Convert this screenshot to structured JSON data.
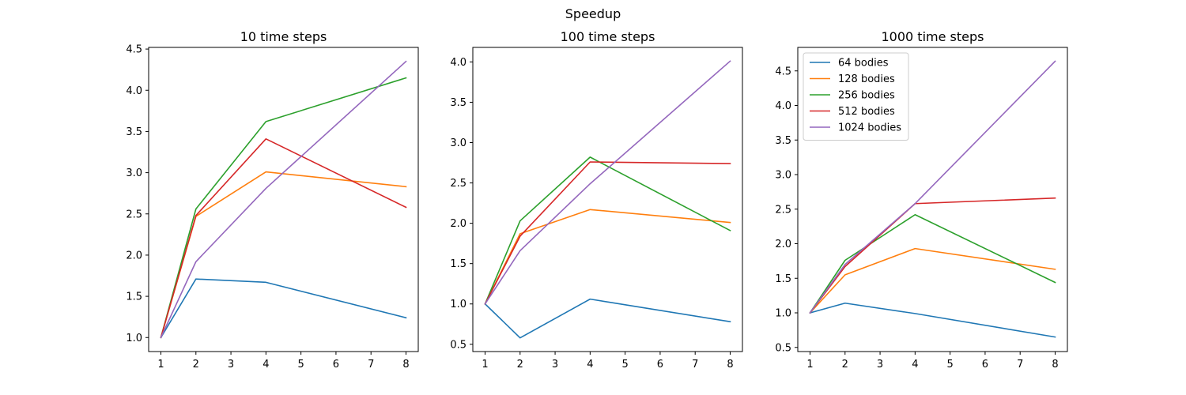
{
  "figure": {
    "suptitle": "Speedup"
  },
  "chart_data": [
    {
      "type": "line",
      "title": "10 time steps",
      "xlabel": "",
      "ylabel": "",
      "x": [
        1,
        2,
        4,
        8
      ],
      "xlim": [
        0.65,
        8.35
      ],
      "ylim": [
        0.83,
        4.52
      ],
      "xticks": [
        1,
        2,
        3,
        4,
        5,
        6,
        7,
        8
      ],
      "yticks": [
        1.0,
        1.5,
        2.0,
        2.5,
        3.0,
        3.5,
        4.0,
        4.5
      ],
      "legend": false,
      "series": [
        {
          "name": "64 bodies",
          "color": "#1f77b4",
          "values": [
            1.0,
            1.71,
            1.67,
            1.24
          ]
        },
        {
          "name": "128 bodies",
          "color": "#ff7f0e",
          "values": [
            1.0,
            2.47,
            3.01,
            2.83
          ]
        },
        {
          "name": "256 bodies",
          "color": "#2ca02c",
          "values": [
            1.0,
            2.56,
            3.62,
            4.15
          ]
        },
        {
          "name": "512 bodies",
          "color": "#d62728",
          "values": [
            1.0,
            2.48,
            3.41,
            2.58
          ]
        },
        {
          "name": "1024 bodies",
          "color": "#9467bd",
          "values": [
            1.0,
            1.92,
            2.81,
            4.35
          ]
        }
      ]
    },
    {
      "type": "line",
      "title": "100 time steps",
      "xlabel": "",
      "ylabel": "",
      "x": [
        1,
        2,
        4,
        8
      ],
      "xlim": [
        0.65,
        8.35
      ],
      "ylim": [
        0.41,
        4.18
      ],
      "xticks": [
        1,
        2,
        3,
        4,
        5,
        6,
        7,
        8
      ],
      "yticks": [
        0.5,
        1.0,
        1.5,
        2.0,
        2.5,
        3.0,
        3.5,
        4.0
      ],
      "legend": false,
      "series": [
        {
          "name": "64 bodies",
          "color": "#1f77b4",
          "values": [
            1.0,
            0.58,
            1.06,
            0.78
          ]
        },
        {
          "name": "128 bodies",
          "color": "#ff7f0e",
          "values": [
            1.0,
            1.87,
            2.17,
            2.01
          ]
        },
        {
          "name": "256 bodies",
          "color": "#2ca02c",
          "values": [
            1.0,
            2.03,
            2.82,
            1.91
          ]
        },
        {
          "name": "512 bodies",
          "color": "#d62728",
          "values": [
            1.0,
            1.84,
            2.76,
            2.74
          ]
        },
        {
          "name": "1024 bodies",
          "color": "#9467bd",
          "values": [
            1.0,
            1.66,
            2.49,
            4.01
          ]
        }
      ]
    },
    {
      "type": "line",
      "title": "1000 time steps",
      "xlabel": "",
      "ylabel": "",
      "x": [
        1,
        2,
        4,
        8
      ],
      "xlim": [
        0.65,
        8.35
      ],
      "ylim": [
        0.44,
        4.84
      ],
      "xticks": [
        1,
        2,
        3,
        4,
        5,
        6,
        7,
        8
      ],
      "yticks": [
        0.5,
        1.0,
        1.5,
        2.0,
        2.5,
        3.0,
        3.5,
        4.0,
        4.5
      ],
      "legend": true,
      "legend_position": "upper-left",
      "series": [
        {
          "name": "64 bodies",
          "color": "#1f77b4",
          "values": [
            1.0,
            1.14,
            0.99,
            0.65
          ]
        },
        {
          "name": "128 bodies",
          "color": "#ff7f0e",
          "values": [
            1.0,
            1.55,
            1.93,
            1.63
          ]
        },
        {
          "name": "256 bodies",
          "color": "#2ca02c",
          "values": [
            1.0,
            1.76,
            2.42,
            1.44
          ]
        },
        {
          "name": "512 bodies",
          "color": "#d62728",
          "values": [
            1.0,
            1.67,
            2.58,
            2.66
          ]
        },
        {
          "name": "1024 bodies",
          "color": "#9467bd",
          "values": [
            1.0,
            1.7,
            2.58,
            4.64
          ]
        }
      ]
    }
  ]
}
